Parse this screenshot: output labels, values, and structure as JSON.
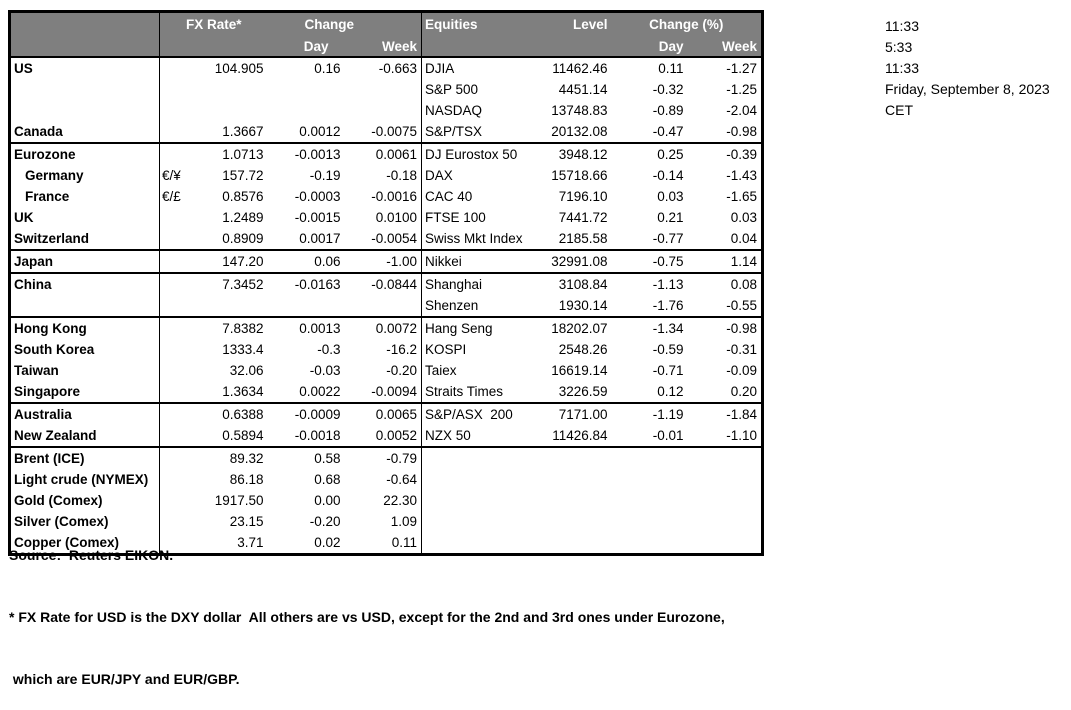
{
  "colors": {
    "header_bg": "#7f7f7f",
    "header_text": "#ffffff",
    "border": "#000000",
    "body_text": "#000000"
  },
  "header": {
    "fx_rate": "FX Rate*",
    "change": "Change",
    "day": "Day",
    "week": "Week",
    "equities": "Equities",
    "level": "Level",
    "change_pct": "Change (%)"
  },
  "timestamps": {
    "lines": [
      "11:33",
      "5:33",
      "11:33",
      "Friday, September 8, 2023",
      "CET"
    ]
  },
  "table": {
    "rows": [
      {
        "name": "US",
        "pair": "",
        "fx_rate": "104.905",
        "fx_day": "0.16",
        "fx_week": "-0.663",
        "equity": "DJIA",
        "level": "11462.46",
        "eq_day": "0.11",
        "eq_week": "-1.27"
      },
      {
        "name": "",
        "pair": "",
        "fx_rate": "",
        "fx_day": "",
        "fx_week": "",
        "equity": "S&P 500",
        "level": "4451.14",
        "eq_day": "-0.32",
        "eq_week": "-1.25"
      },
      {
        "name": "",
        "pair": "",
        "fx_rate": "",
        "fx_day": "",
        "fx_week": "",
        "equity": "NASDAQ",
        "level": "13748.83",
        "eq_day": "-0.89",
        "eq_week": "-2.04"
      },
      {
        "name": "Canada",
        "pair": "",
        "fx_rate": "1.3667",
        "fx_day": "0.0012",
        "fx_week": "-0.0075",
        "equity": "S&P/TSX",
        "level": "20132.08",
        "eq_day": "-0.47",
        "eq_week": "-0.98"
      },
      {
        "sep": true,
        "name": "Eurozone",
        "pair": "",
        "fx_rate": "1.0713",
        "fx_day": "-0.0013",
        "fx_week": "0.0061",
        "equity": "DJ Eurostox 50",
        "level": "3948.12",
        "eq_day": "0.25",
        "eq_week": "-0.39"
      },
      {
        "indent": true,
        "name": "Germany",
        "pair": "€/¥",
        "fx_rate": "157.72",
        "fx_day": "-0.19",
        "fx_week": "-0.18",
        "equity": "DAX",
        "level": "15718.66",
        "eq_day": "-0.14",
        "eq_week": "-1.43"
      },
      {
        "indent": true,
        "name": "France",
        "pair": "€/£",
        "fx_rate": "0.8576",
        "fx_day": "-0.0003",
        "fx_week": "-0.0016",
        "equity": "CAC 40",
        "level": "7196.10",
        "eq_day": "0.03",
        "eq_week": "-1.65"
      },
      {
        "name": "UK",
        "pair": "",
        "fx_rate": "1.2489",
        "fx_day": "-0.0015",
        "fx_week": "0.0100",
        "equity": "FTSE 100",
        "level": "7441.72",
        "eq_day": "0.21",
        "eq_week": "0.03"
      },
      {
        "name": "Switzerland",
        "pair": "",
        "fx_rate": "0.8909",
        "fx_day": "0.0017",
        "fx_week": "-0.0054",
        "equity": "Swiss Mkt Index",
        "level": "2185.58",
        "eq_day": "-0.77",
        "eq_week": "0.04"
      },
      {
        "sep": true,
        "name": "Japan",
        "pair": "",
        "fx_rate": "147.20",
        "fx_day": "0.06",
        "fx_week": "-1.00",
        "equity": "Nikkei",
        "level": "32991.08",
        "eq_day": "-0.75",
        "eq_week": "1.14"
      },
      {
        "sep": true,
        "name": "China",
        "pair": "",
        "fx_rate": "7.3452",
        "fx_day": "-0.0163",
        "fx_week": "-0.0844",
        "equity": "Shanghai",
        "level": "3108.84",
        "eq_day": "-1.13",
        "eq_week": "0.08"
      },
      {
        "name": "",
        "pair": "",
        "fx_rate": "",
        "fx_day": "",
        "fx_week": "",
        "equity": "Shenzen",
        "level": "1930.14",
        "eq_day": "-1.76",
        "eq_week": "-0.55"
      },
      {
        "sep": true,
        "name": "Hong Kong",
        "pair": "",
        "fx_rate": "7.8382",
        "fx_day": "0.0013",
        "fx_week": "0.0072",
        "equity": "Hang Seng",
        "level": "18202.07",
        "eq_day": "-1.34",
        "eq_week": "-0.98"
      },
      {
        "name": "South Korea",
        "pair": "",
        "fx_rate": "1333.4",
        "fx_day": "-0.3",
        "fx_week": "-16.2",
        "equity": "KOSPI",
        "level": "2548.26",
        "eq_day": "-0.59",
        "eq_week": "-0.31"
      },
      {
        "name": "Taiwan",
        "pair": "",
        "fx_rate": "32.06",
        "fx_day": "-0.03",
        "fx_week": "-0.20",
        "equity": "Taiex",
        "level": "16619.14",
        "eq_day": "-0.71",
        "eq_week": "-0.09"
      },
      {
        "name": "Singapore",
        "pair": "",
        "fx_rate": "1.3634",
        "fx_day": "0.0022",
        "fx_week": "-0.0094",
        "equity": "Straits Times",
        "level": "3226.59",
        "eq_day": "0.12",
        "eq_week": "0.20"
      },
      {
        "sep": true,
        "name": "Australia",
        "pair": "",
        "fx_rate": "0.6388",
        "fx_day": "-0.0009",
        "fx_week": "0.0065",
        "equity": "S&P/ASX  200",
        "level": "7171.00",
        "eq_day": "-1.19",
        "eq_week": "-1.84"
      },
      {
        "name": "New Zealand",
        "pair": "",
        "fx_rate": "0.5894",
        "fx_day": "-0.0018",
        "fx_week": "0.0052",
        "equity": "NZX 50",
        "level": "11426.84",
        "eq_day": "-0.01",
        "eq_week": "-1.10"
      },
      {
        "sep": true,
        "name": "Brent (ICE)",
        "pair": "",
        "fx_rate": "89.32",
        "fx_day": "0.58",
        "fx_week": "-0.79",
        "equity": "",
        "level": "",
        "eq_day": "",
        "eq_week": ""
      },
      {
        "name": "Light crude (NYMEX)",
        "pair": "",
        "fx_rate": "86.18",
        "fx_day": "0.68",
        "fx_week": "-0.64",
        "equity": "",
        "level": "",
        "eq_day": "",
        "eq_week": ""
      },
      {
        "name": "Gold (Comex)",
        "pair": "",
        "fx_rate": "1917.50",
        "fx_day": "0.00",
        "fx_week": "22.30",
        "equity": "",
        "level": "",
        "eq_day": "",
        "eq_week": ""
      },
      {
        "name": "Silver (Comex)",
        "pair": "",
        "fx_rate": "23.15",
        "fx_day": "-0.20",
        "fx_week": "1.09",
        "equity": "",
        "level": "",
        "eq_day": "",
        "eq_week": ""
      },
      {
        "name": "Copper (Comex)",
        "pair": "",
        "fx_rate": "3.71",
        "fx_day": "0.02",
        "fx_week": "0.11",
        "equity": "",
        "level": "",
        "eq_day": "",
        "eq_week": ""
      }
    ]
  },
  "footer": {
    "source": "Source:  Reuters EIKON.",
    "footnote_line1": "* FX Rate for USD is the DXY dollar  All others are vs USD, except for the 2nd and 3rd ones under Eurozone,",
    "footnote_line2": " which are EUR/JPY and EUR/GBP."
  }
}
